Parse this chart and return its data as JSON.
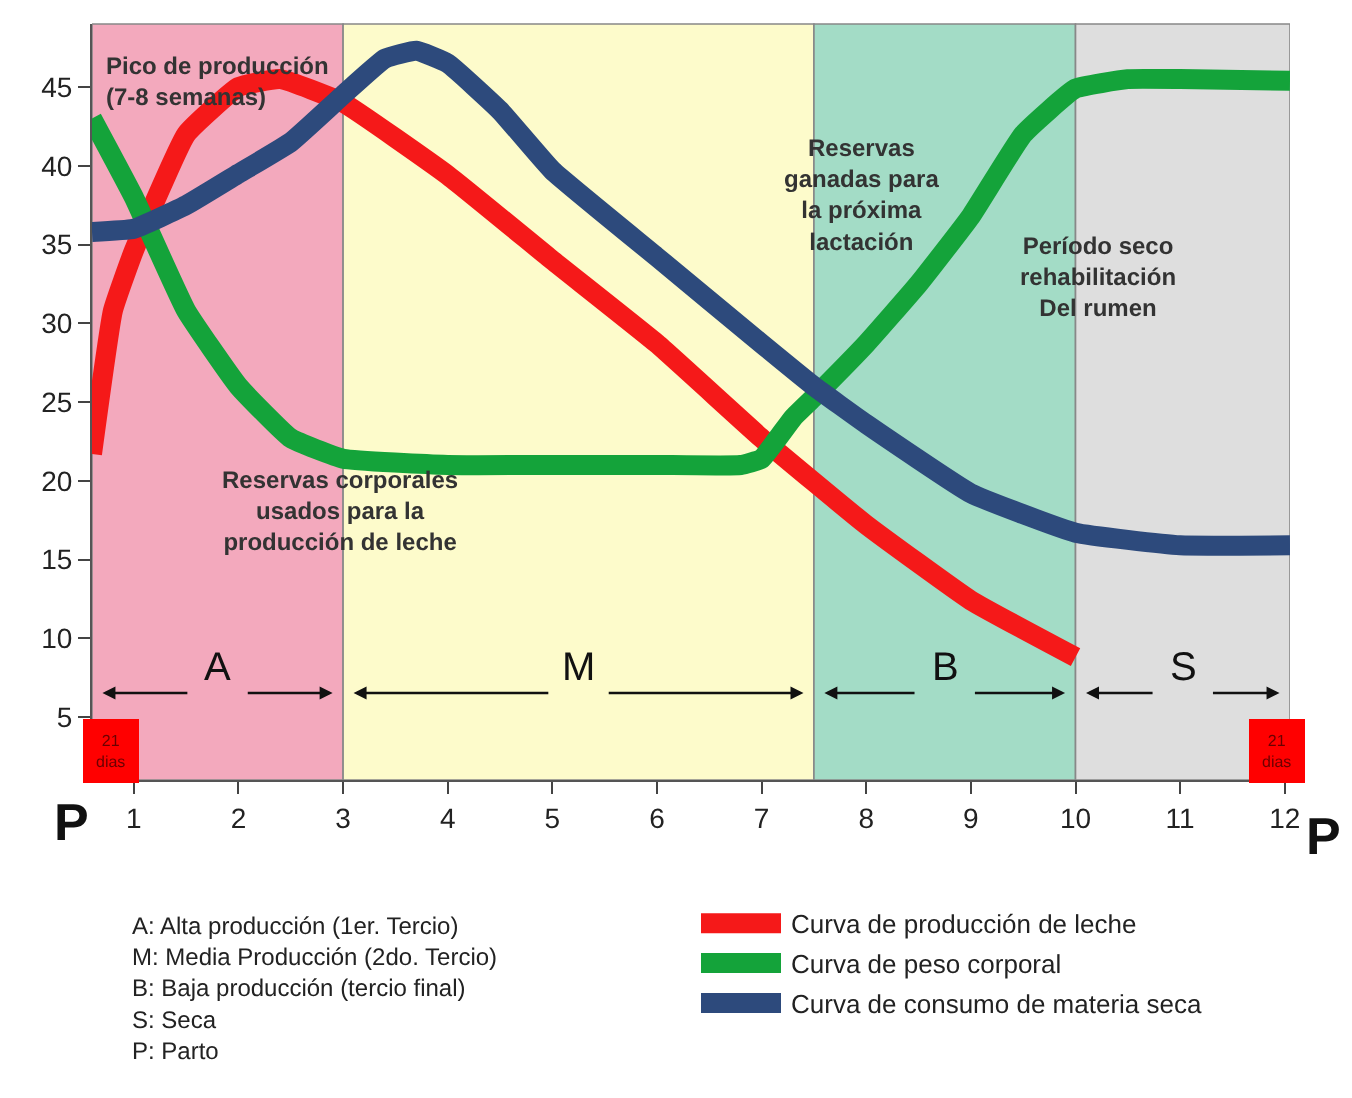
{
  "chart_data": {
    "type": "line",
    "xlim": [
      0.6,
      12.05
    ],
    "ylim": [
      1,
      49
    ],
    "xticks": [
      1,
      2,
      3,
      4,
      5,
      6,
      7,
      8,
      9,
      10,
      11,
      12
    ],
    "yticks": [
      5,
      10,
      15,
      20,
      25,
      30,
      35,
      40,
      45
    ],
    "grid": false,
    "legend": "bottom",
    "marker": "none",
    "line_style": "solid",
    "series": [
      {
        "name": "Curva de producción de leche",
        "color": "#f51919",
        "x": [
          0.6,
          0.8,
          1,
          1.5,
          2,
          2.4,
          3,
          4,
          5,
          6,
          7,
          8,
          9,
          10
        ],
        "values": [
          21.7,
          30.8,
          34.6,
          42,
          45,
          45.5,
          44,
          39.4,
          34,
          28.7,
          22.7,
          17.2,
          12.4,
          8.8
        ]
      },
      {
        "name": "Curva de peso corporal",
        "color": "#14a33a",
        "x": [
          0.6,
          1,
          1.5,
          2,
          2.5,
          3,
          4,
          5,
          6,
          6.8,
          7,
          7.3,
          7.5,
          8,
          8.5,
          9,
          9.5,
          10,
          10.5,
          11,
          12.05
        ],
        "values": [
          43,
          38,
          30.8,
          26,
          22.7,
          21.4,
          21,
          21,
          21,
          21,
          21.4,
          24,
          25.3,
          28.7,
          32.5,
          36.8,
          42,
          44.9,
          45.5,
          45.5,
          45.4
        ]
      },
      {
        "name": "Curva de consumo de materia seca",
        "color": "#2d4a7c",
        "x": [
          0.6,
          1,
          1.5,
          2,
          2.5,
          3,
          3.4,
          3.7,
          4,
          4.5,
          5,
          6,
          7,
          7.5,
          8,
          9,
          10,
          11,
          12.05
        ],
        "values": [
          35.8,
          36,
          37.5,
          39.5,
          41.5,
          44.5,
          46.8,
          47.3,
          46.5,
          43.5,
          39.7,
          34.2,
          28.7,
          26,
          23.6,
          19.2,
          16.7,
          15.9,
          15.9
        ]
      }
    ],
    "bands": [
      {
        "axis": "x",
        "from": 0.6,
        "to": 3,
        "label": "A",
        "color": "#f3a9bd"
      },
      {
        "axis": "x",
        "from": 3,
        "to": 7.5,
        "label": "M",
        "color": "#fdfbcb"
      },
      {
        "axis": "x",
        "from": 7.5,
        "to": 10,
        "label": "B",
        "color": "#a3dcc6"
      },
      {
        "axis": "x",
        "from": 10,
        "to": 12.05,
        "label": "S",
        "color": "#dedede"
      }
    ],
    "annotations": [
      {
        "text": "Pico de producción\n(7-8 semanas)",
        "x": 0.7,
        "y": 47.5
      },
      "Reservas corporales\nusados para la\nproducción de leche",
      "Reservas\nganadas para\nla próxima\nlactación",
      "Período seco\nrehabilitación\nDel rumen",
      {
        "text": "21\ndias",
        "x": 0.78,
        "y": 2.8
      },
      {
        "text": "21\ndias",
        "x": 11.92,
        "y": 2.8
      },
      "P",
      "P",
      "A: Alta producción (1er. Tercio)\nM: Media Producción (2do. Tercio)\nB: Baja producción (tercio final)\nS: Seca\nP: Parto"
    ]
  }
}
